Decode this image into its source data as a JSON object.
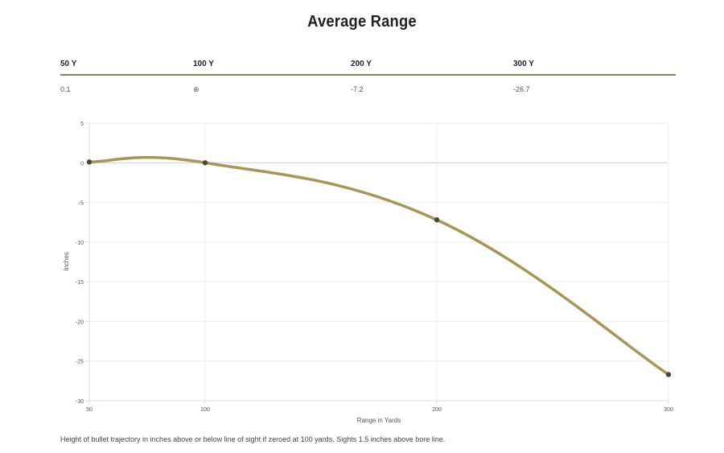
{
  "title": "Average Range",
  "table": {
    "headers": [
      "50 Y",
      "100 Y",
      "200 Y",
      "300 Y"
    ],
    "values": [
      "0.1",
      "⊕",
      "-7.2",
      "-26.7"
    ]
  },
  "chart_data": {
    "type": "line",
    "x": [
      50,
      100,
      200,
      300
    ],
    "series": [
      {
        "values": [
          0.1,
          0,
          -7.2,
          -26.7
        ]
      }
    ],
    "xticks": [
      50,
      100,
      200,
      300
    ],
    "yticks": [
      5,
      0,
      -5,
      -10,
      -15,
      -20,
      -25,
      -30
    ],
    "xlim": [
      50,
      300
    ],
    "ylim": [
      -30,
      5
    ],
    "xlabel": "Range in Yards",
    "ylabel": "Inches",
    "grid": true,
    "colors": {
      "line": "#a89658",
      "points": "#4a4a3a",
      "grid": "#eeeeee",
      "zero": "#cccccc"
    }
  },
  "caption": "Height of bullet trajectory in inches above or below line of sight if zeroed at 100 yards. Sights 1.5 inches above bore line."
}
